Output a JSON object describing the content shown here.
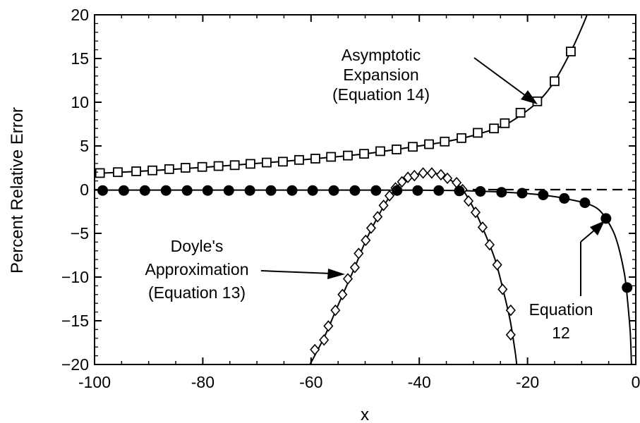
{
  "chart_data": {
    "type": "line",
    "title": "",
    "xlabel": "x",
    "ylabel": "Percent Relative Error",
    "xlim": [
      -100,
      0
    ],
    "ylim": [
      -20,
      20
    ],
    "xticks": [
      -100,
      -80,
      -60,
      -40,
      -20,
      0
    ],
    "yticks": [
      20,
      15,
      10,
      5,
      0,
      -5,
      -10,
      -15,
      -20
    ],
    "xtick_labels": [
      "-100",
      "-80",
      "-60",
      "-40",
      "-20",
      "0"
    ],
    "ytick_labels": [
      "20",
      "15",
      "10",
      "5",
      "0",
      "−5",
      "−10",
      "−15",
      "−20"
    ],
    "grid": false,
    "reference_line": {
      "y": 0,
      "style": "dashed",
      "x_range": [
        -33,
        0
      ]
    },
    "series": [
      {
        "id": "asymptotic",
        "marker": "open-square",
        "points": [
          {
            "x": -99,
            "y": 1.9
          },
          {
            "x": -95.7,
            "y": 2.0
          },
          {
            "x": -92.3,
            "y": 2.1
          },
          {
            "x": -89.3,
            "y": 2.2
          },
          {
            "x": -86.2,
            "y": 2.35
          },
          {
            "x": -83.2,
            "y": 2.5
          },
          {
            "x": -80.1,
            "y": 2.6
          },
          {
            "x": -77.1,
            "y": 2.7
          },
          {
            "x": -74.1,
            "y": 2.8
          },
          {
            "x": -71.2,
            "y": 2.95
          },
          {
            "x": -68.2,
            "y": 3.1
          },
          {
            "x": -65.2,
            "y": 3.2
          },
          {
            "x": -62.2,
            "y": 3.4
          },
          {
            "x": -59.2,
            "y": 3.55
          },
          {
            "x": -56.3,
            "y": 3.75
          },
          {
            "x": -53.2,
            "y": 3.9
          },
          {
            "x": -50.2,
            "y": 4.1
          },
          {
            "x": -47.2,
            "y": 4.4
          },
          {
            "x": -44.2,
            "y": 4.6
          },
          {
            "x": -41.2,
            "y": 4.9
          },
          {
            "x": -38.2,
            "y": 5.2
          },
          {
            "x": -35.3,
            "y": 5.5
          },
          {
            "x": -32.2,
            "y": 5.9
          },
          {
            "x": -29.2,
            "y": 6.5
          },
          {
            "x": -26.2,
            "y": 7.0
          },
          {
            "x": -24.2,
            "y": 7.6
          },
          {
            "x": -21.3,
            "y": 8.8
          },
          {
            "x": -18.2,
            "y": 10.1
          },
          {
            "x": -15,
            "y": 12.4
          },
          {
            "x": -12,
            "y": 15.8
          }
        ],
        "curve": [
          [
            -100,
            1.85
          ],
          [
            -90,
            2.15
          ],
          [
            -80,
            2.55
          ],
          [
            -70,
            3.0
          ],
          [
            -60,
            3.5
          ],
          [
            -50,
            4.1
          ],
          [
            -40,
            5.0
          ],
          [
            -35,
            5.5
          ],
          [
            -30,
            6.2
          ],
          [
            -25,
            7.2
          ],
          [
            -22,
            8.2
          ],
          [
            -18,
            10.1
          ],
          [
            -15,
            12.4
          ],
          [
            -12,
            15.8
          ],
          [
            -10,
            18.5
          ],
          [
            -9,
            20
          ]
        ]
      },
      {
        "id": "doyle",
        "marker": "open-diamond",
        "points": [
          {
            "x": -59.3,
            "y": -18.3
          },
          {
            "x": -57.6,
            "y": -17.2
          },
          {
            "x": -56.8,
            "y": -15.6
          },
          {
            "x": -55.5,
            "y": -13.8
          },
          {
            "x": -54.2,
            "y": -12.0
          },
          {
            "x": -53.2,
            "y": -10.2
          },
          {
            "x": -51.9,
            "y": -8.9
          },
          {
            "x": -51.2,
            "y": -7.3
          },
          {
            "x": -49.9,
            "y": -5.8
          },
          {
            "x": -48.9,
            "y": -4.4
          },
          {
            "x": -47.7,
            "y": -3.1
          },
          {
            "x": -46.6,
            "y": -1.8
          },
          {
            "x": -45.5,
            "y": -0.7
          },
          {
            "x": -44.4,
            "y": 0.2
          },
          {
            "x": -43.2,
            "y": 0.9
          },
          {
            "x": -42.1,
            "y": 1.4
          },
          {
            "x": -40.9,
            "y": 1.6
          },
          {
            "x": -39.3,
            "y": 1.9
          },
          {
            "x": -37.7,
            "y": 1.9
          },
          {
            "x": -36.0,
            "y": 1.7
          },
          {
            "x": -34.8,
            "y": 1.3
          },
          {
            "x": -33.1,
            "y": 0.8
          },
          {
            "x": -32.0,
            "y": 0.0
          },
          {
            "x": -30.9,
            "y": -1.3
          },
          {
            "x": -29.6,
            "y": -2.6
          },
          {
            "x": -28.3,
            "y": -4.3
          },
          {
            "x": -27.0,
            "y": -6.3
          },
          {
            "x": -25.6,
            "y": -8.6
          },
          {
            "x": -24.6,
            "y": -11.4
          },
          {
            "x": -23.1,
            "y": -13.8
          },
          {
            "x": -23.1,
            "y": -16.6
          }
        ],
        "curve": [
          [
            -60.2,
            -20
          ],
          [
            -57.5,
            -16.8
          ],
          [
            -55,
            -13.2
          ],
          [
            -52,
            -9.0
          ],
          [
            -50,
            -6.0
          ],
          [
            -48,
            -3.5
          ],
          [
            -46,
            -1.3
          ],
          [
            -44,
            0.4
          ],
          [
            -42,
            1.4
          ],
          [
            -40,
            1.8
          ],
          [
            -38,
            1.9
          ],
          [
            -36,
            1.7
          ],
          [
            -34,
            1.0
          ],
          [
            -32,
            0.0
          ],
          [
            -30,
            -2.1
          ],
          [
            -28,
            -4.8
          ],
          [
            -26,
            -8.0
          ],
          [
            -24.5,
            -11.5
          ],
          [
            -23.2,
            -15.0
          ],
          [
            -22.3,
            -18.5
          ],
          [
            -22,
            -20
          ]
        ]
      },
      {
        "id": "equation12",
        "marker": "filled-circle",
        "points": [
          {
            "x": -98.5,
            "y": -0.1
          },
          {
            "x": -94.6,
            "y": -0.1
          },
          {
            "x": -90.7,
            "y": -0.1
          },
          {
            "x": -86.8,
            "y": -0.1
          },
          {
            "x": -82.9,
            "y": -0.1
          },
          {
            "x": -79.1,
            "y": -0.1
          },
          {
            "x": -75.2,
            "y": -0.1
          },
          {
            "x": -71.3,
            "y": -0.1
          },
          {
            "x": -67.4,
            "y": -0.1
          },
          {
            "x": -63.5,
            "y": -0.1
          },
          {
            "x": -59.7,
            "y": -0.1
          },
          {
            "x": -55.8,
            "y": -0.1
          },
          {
            "x": -51.9,
            "y": -0.1
          },
          {
            "x": -48.0,
            "y": -0.1
          },
          {
            "x": -44.1,
            "y": -0.1
          },
          {
            "x": -40.3,
            "y": -0.1
          },
          {
            "x": -36.4,
            "y": -0.1
          },
          {
            "x": -32.6,
            "y": -0.15
          },
          {
            "x": -28.7,
            "y": -0.2
          },
          {
            "x": -24.8,
            "y": -0.3
          },
          {
            "x": -21.0,
            "y": -0.4
          },
          {
            "x": -17.1,
            "y": -0.6
          },
          {
            "x": -13.2,
            "y": -1.0
          },
          {
            "x": -9.4,
            "y": -1.5
          },
          {
            "x": -5.5,
            "y": -3.3
          },
          {
            "x": -1.6,
            "y": -11.2
          }
        ],
        "curve": [
          [
            -100,
            -0.05
          ],
          [
            -80,
            -0.05
          ],
          [
            -60,
            -0.05
          ],
          [
            -40,
            -0.06
          ],
          [
            -30,
            -0.15
          ],
          [
            -20,
            -0.45
          ],
          [
            -15,
            -0.8
          ],
          [
            -12,
            -1.15
          ],
          [
            -9,
            -1.6
          ],
          [
            -7,
            -2.2
          ],
          [
            -5.5,
            -3.3
          ],
          [
            -4,
            -5.0
          ],
          [
            -3,
            -7.0
          ],
          [
            -2,
            -10.0
          ],
          [
            -1.4,
            -13.5
          ],
          [
            -1,
            -16.5
          ],
          [
            -0.8,
            -20
          ]
        ]
      }
    ],
    "annotations": [
      {
        "id": "asymptotic-label",
        "lines": [
          "Asymptotic",
          "Expansion",
          "(Equation 14)"
        ]
      },
      {
        "id": "doyle-label",
        "lines": [
          "Doyle's",
          "Approximation",
          "(Equation 13)"
        ]
      },
      {
        "id": "equation12-label",
        "lines": [
          "Equation",
          "12"
        ]
      }
    ]
  }
}
